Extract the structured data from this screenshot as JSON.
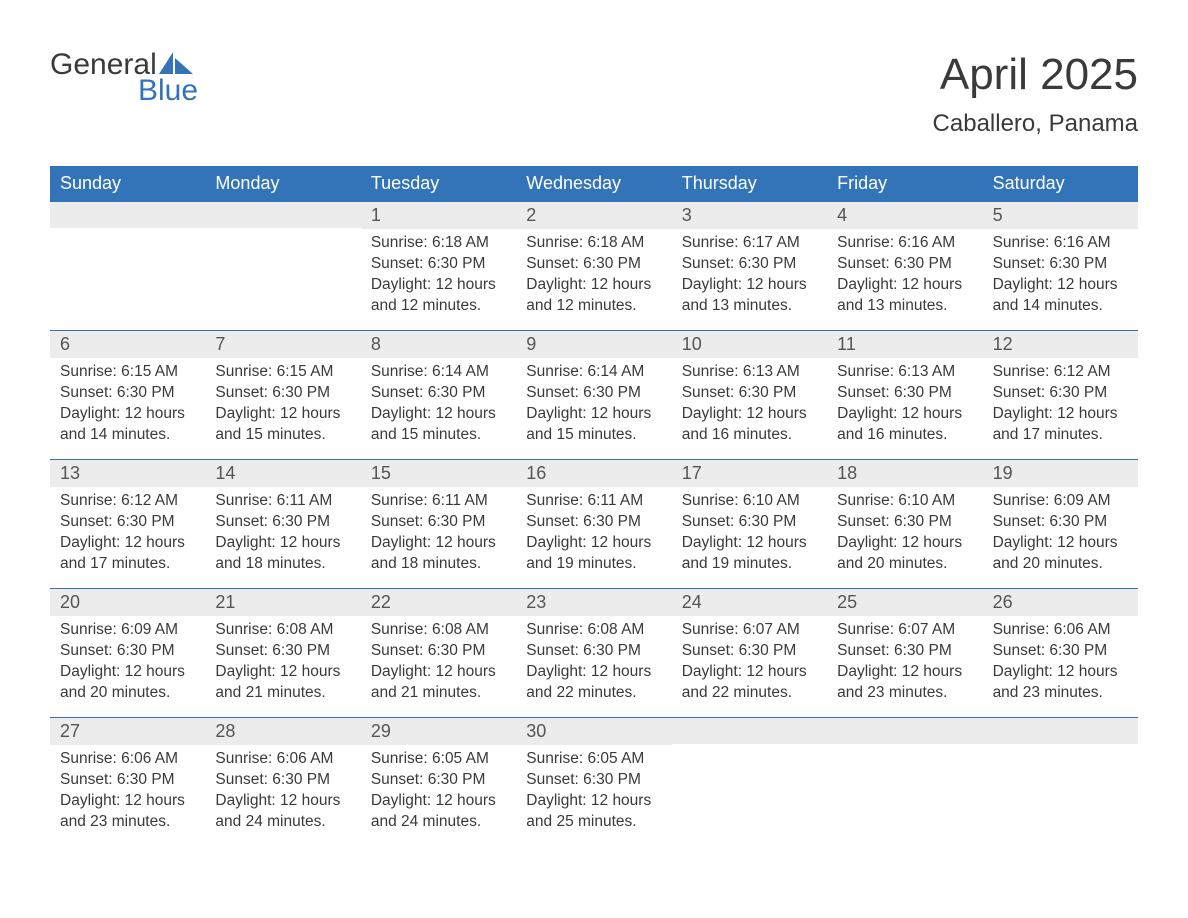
{
  "logo": {
    "text_top": "General",
    "text_bottom": "Blue",
    "shape_color": "#3374b8"
  },
  "title": "April 2025",
  "location": "Caballero, Panama",
  "colors": {
    "header_bg": "#3374b8",
    "header_text": "#ffffff",
    "daynum_bg": "#ececec",
    "row_border": "#3374b8",
    "text": "#3a3a3a",
    "accent": "#3374b8",
    "background": "#ffffff"
  },
  "weekdays": [
    "Sunday",
    "Monday",
    "Tuesday",
    "Wednesday",
    "Thursday",
    "Friday",
    "Saturday"
  ],
  "weeks": [
    [
      null,
      null,
      {
        "n": "1",
        "sunrise": "Sunrise: 6:18 AM",
        "sunset": "Sunset: 6:30 PM",
        "d1": "Daylight: 12 hours",
        "d2": "and 12 minutes."
      },
      {
        "n": "2",
        "sunrise": "Sunrise: 6:18 AM",
        "sunset": "Sunset: 6:30 PM",
        "d1": "Daylight: 12 hours",
        "d2": "and 12 minutes."
      },
      {
        "n": "3",
        "sunrise": "Sunrise: 6:17 AM",
        "sunset": "Sunset: 6:30 PM",
        "d1": "Daylight: 12 hours",
        "d2": "and 13 minutes."
      },
      {
        "n": "4",
        "sunrise": "Sunrise: 6:16 AM",
        "sunset": "Sunset: 6:30 PM",
        "d1": "Daylight: 12 hours",
        "d2": "and 13 minutes."
      },
      {
        "n": "5",
        "sunrise": "Sunrise: 6:16 AM",
        "sunset": "Sunset: 6:30 PM",
        "d1": "Daylight: 12 hours",
        "d2": "and 14 minutes."
      }
    ],
    [
      {
        "n": "6",
        "sunrise": "Sunrise: 6:15 AM",
        "sunset": "Sunset: 6:30 PM",
        "d1": "Daylight: 12 hours",
        "d2": "and 14 minutes."
      },
      {
        "n": "7",
        "sunrise": "Sunrise: 6:15 AM",
        "sunset": "Sunset: 6:30 PM",
        "d1": "Daylight: 12 hours",
        "d2": "and 15 minutes."
      },
      {
        "n": "8",
        "sunrise": "Sunrise: 6:14 AM",
        "sunset": "Sunset: 6:30 PM",
        "d1": "Daylight: 12 hours",
        "d2": "and 15 minutes."
      },
      {
        "n": "9",
        "sunrise": "Sunrise: 6:14 AM",
        "sunset": "Sunset: 6:30 PM",
        "d1": "Daylight: 12 hours",
        "d2": "and 15 minutes."
      },
      {
        "n": "10",
        "sunrise": "Sunrise: 6:13 AM",
        "sunset": "Sunset: 6:30 PM",
        "d1": "Daylight: 12 hours",
        "d2": "and 16 minutes."
      },
      {
        "n": "11",
        "sunrise": "Sunrise: 6:13 AM",
        "sunset": "Sunset: 6:30 PM",
        "d1": "Daylight: 12 hours",
        "d2": "and 16 minutes."
      },
      {
        "n": "12",
        "sunrise": "Sunrise: 6:12 AM",
        "sunset": "Sunset: 6:30 PM",
        "d1": "Daylight: 12 hours",
        "d2": "and 17 minutes."
      }
    ],
    [
      {
        "n": "13",
        "sunrise": "Sunrise: 6:12 AM",
        "sunset": "Sunset: 6:30 PM",
        "d1": "Daylight: 12 hours",
        "d2": "and 17 minutes."
      },
      {
        "n": "14",
        "sunrise": "Sunrise: 6:11 AM",
        "sunset": "Sunset: 6:30 PM",
        "d1": "Daylight: 12 hours",
        "d2": "and 18 minutes."
      },
      {
        "n": "15",
        "sunrise": "Sunrise: 6:11 AM",
        "sunset": "Sunset: 6:30 PM",
        "d1": "Daylight: 12 hours",
        "d2": "and 18 minutes."
      },
      {
        "n": "16",
        "sunrise": "Sunrise: 6:11 AM",
        "sunset": "Sunset: 6:30 PM",
        "d1": "Daylight: 12 hours",
        "d2": "and 19 minutes."
      },
      {
        "n": "17",
        "sunrise": "Sunrise: 6:10 AM",
        "sunset": "Sunset: 6:30 PM",
        "d1": "Daylight: 12 hours",
        "d2": "and 19 minutes."
      },
      {
        "n": "18",
        "sunrise": "Sunrise: 6:10 AM",
        "sunset": "Sunset: 6:30 PM",
        "d1": "Daylight: 12 hours",
        "d2": "and 20 minutes."
      },
      {
        "n": "19",
        "sunrise": "Sunrise: 6:09 AM",
        "sunset": "Sunset: 6:30 PM",
        "d1": "Daylight: 12 hours",
        "d2": "and 20 minutes."
      }
    ],
    [
      {
        "n": "20",
        "sunrise": "Sunrise: 6:09 AM",
        "sunset": "Sunset: 6:30 PM",
        "d1": "Daylight: 12 hours",
        "d2": "and 20 minutes."
      },
      {
        "n": "21",
        "sunrise": "Sunrise: 6:08 AM",
        "sunset": "Sunset: 6:30 PM",
        "d1": "Daylight: 12 hours",
        "d2": "and 21 minutes."
      },
      {
        "n": "22",
        "sunrise": "Sunrise: 6:08 AM",
        "sunset": "Sunset: 6:30 PM",
        "d1": "Daylight: 12 hours",
        "d2": "and 21 minutes."
      },
      {
        "n": "23",
        "sunrise": "Sunrise: 6:08 AM",
        "sunset": "Sunset: 6:30 PM",
        "d1": "Daylight: 12 hours",
        "d2": "and 22 minutes."
      },
      {
        "n": "24",
        "sunrise": "Sunrise: 6:07 AM",
        "sunset": "Sunset: 6:30 PM",
        "d1": "Daylight: 12 hours",
        "d2": "and 22 minutes."
      },
      {
        "n": "25",
        "sunrise": "Sunrise: 6:07 AM",
        "sunset": "Sunset: 6:30 PM",
        "d1": "Daylight: 12 hours",
        "d2": "and 23 minutes."
      },
      {
        "n": "26",
        "sunrise": "Sunrise: 6:06 AM",
        "sunset": "Sunset: 6:30 PM",
        "d1": "Daylight: 12 hours",
        "d2": "and 23 minutes."
      }
    ],
    [
      {
        "n": "27",
        "sunrise": "Sunrise: 6:06 AM",
        "sunset": "Sunset: 6:30 PM",
        "d1": "Daylight: 12 hours",
        "d2": "and 23 minutes."
      },
      {
        "n": "28",
        "sunrise": "Sunrise: 6:06 AM",
        "sunset": "Sunset: 6:30 PM",
        "d1": "Daylight: 12 hours",
        "d2": "and 24 minutes."
      },
      {
        "n": "29",
        "sunrise": "Sunrise: 6:05 AM",
        "sunset": "Sunset: 6:30 PM",
        "d1": "Daylight: 12 hours",
        "d2": "and 24 minutes."
      },
      {
        "n": "30",
        "sunrise": "Sunrise: 6:05 AM",
        "sunset": "Sunset: 6:30 PM",
        "d1": "Daylight: 12 hours",
        "d2": "and 25 minutes."
      },
      null,
      null,
      null
    ]
  ]
}
